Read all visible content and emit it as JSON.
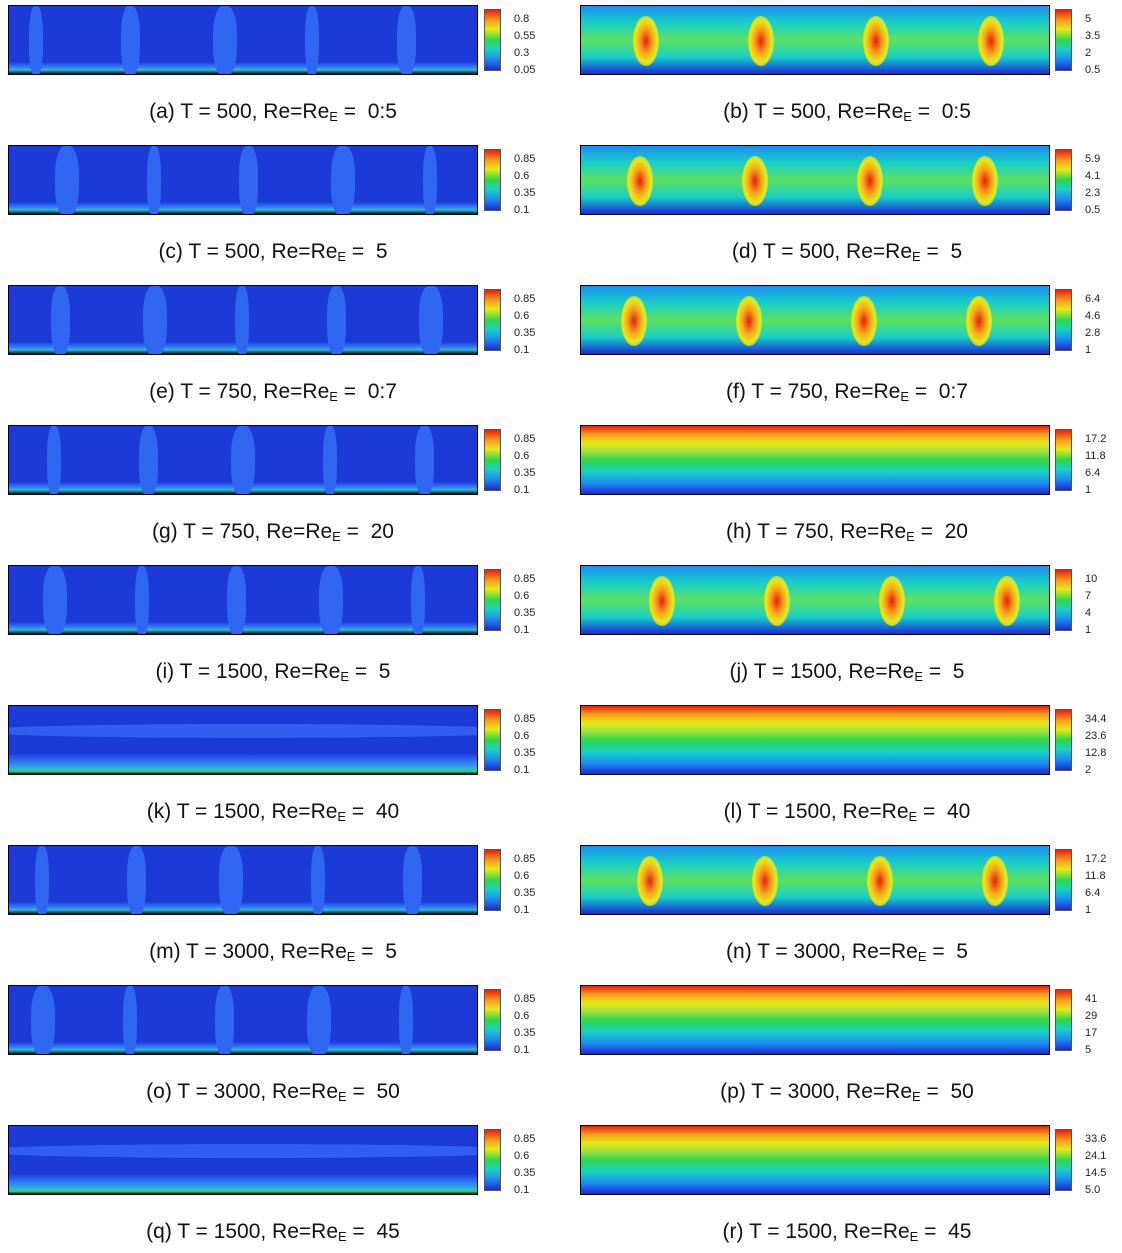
{
  "panels": [
    {
      "caption": {
        "prefix": "(a)  T = 500,  Re=Re",
        "sub": "E",
        "suffix": " =  0:5"
      },
      "colorbar": [
        "0.8",
        "0.55",
        "0.3",
        "0.05"
      ]
    },
    {
      "caption": {
        "prefix": "(b)  T = 500,  Re=Re",
        "sub": "E",
        "suffix": " =  0:5"
      },
      "colorbar": [
        "5",
        "3.5",
        "2",
        "0.5"
      ]
    },
    {
      "caption": {
        "prefix": "(c)  T = 500,  Re=Re",
        "sub": "E",
        "suffix": " =  5"
      },
      "colorbar": [
        "0.85",
        "0.6",
        "0.35",
        "0.1"
      ]
    },
    {
      "caption": {
        "prefix": "(d)  T = 500,  Re=Re",
        "sub": "E",
        "suffix": " =  5"
      },
      "colorbar": [
        "5.9",
        "4.1",
        "2.3",
        "0.5"
      ]
    },
    {
      "caption": {
        "prefix": "(e)  T = 750,  Re=Re",
        "sub": "E",
        "suffix": " =  0:7"
      },
      "colorbar": [
        "0.85",
        "0.6",
        "0.35",
        "0.1"
      ]
    },
    {
      "caption": {
        "prefix": "(f)  T = 750,  Re=Re",
        "sub": "E",
        "suffix": " =  0:7"
      },
      "colorbar": [
        "6.4",
        "4.6",
        "2.8",
        "1"
      ]
    },
    {
      "caption": {
        "prefix": "(g)  T = 750,  Re=Re",
        "sub": "E",
        "suffix": " =  20"
      },
      "colorbar": [
        "0.85",
        "0.6",
        "0.35",
        "0.1"
      ]
    },
    {
      "caption": {
        "prefix": "(h)  T = 750,  Re=Re",
        "sub": "E",
        "suffix": " =  20"
      },
      "colorbar": [
        "17.2",
        "11.8",
        "6.4",
        "1"
      ]
    },
    {
      "caption": {
        "prefix": "(i)  T = 1500,  Re=Re",
        "sub": "E",
        "suffix": " =  5"
      },
      "colorbar": [
        "0.85",
        "0.6",
        "0.35",
        "0.1"
      ]
    },
    {
      "caption": {
        "prefix": "(j)  T = 1500,  Re=Re",
        "sub": "E",
        "suffix": " =  5"
      },
      "colorbar": [
        "10",
        "7",
        "4",
        "1"
      ]
    },
    {
      "caption": {
        "prefix": "(k)  T = 1500,  Re=Re",
        "sub": "E",
        "suffix": " =  40"
      },
      "colorbar": [
        "0.85",
        "0.6",
        "0.35",
        "0.1"
      ]
    },
    {
      "caption": {
        "prefix": "(l)  T = 1500,  Re=Re",
        "sub": "E",
        "suffix": " =  40"
      },
      "colorbar": [
        "34.4",
        "23.6",
        "12.8",
        "2"
      ]
    },
    {
      "caption": {
        "prefix": "(m)  T = 3000,  Re=Re",
        "sub": "E",
        "suffix": " =  5"
      },
      "colorbar": [
        "0.85",
        "0.6",
        "0.35",
        "0.1"
      ]
    },
    {
      "caption": {
        "prefix": "(n)  T = 3000,  Re=Re",
        "sub": "E",
        "suffix": " =  5"
      },
      "colorbar": [
        "17.2",
        "11.8",
        "6.4",
        "1"
      ]
    },
    {
      "caption": {
        "prefix": "(o)  T = 3000,  Re=Re",
        "sub": "E",
        "suffix": " =  50"
      },
      "colorbar": [
        "0.85",
        "0.6",
        "0.35",
        "0.1"
      ]
    },
    {
      "caption": {
        "prefix": "(p)  T = 3000,  Re=Re",
        "sub": "E",
        "suffix": " =  50"
      },
      "colorbar": [
        "41",
        "29",
        "17",
        "5"
      ]
    },
    {
      "caption": {
        "prefix": "(q)  T = 1500,  Re=Re",
        "sub": "E",
        "suffix": " =  45"
      },
      "colorbar": [
        "0.85",
        "0.6",
        "0.35",
        "0.1"
      ]
    },
    {
      "caption": {
        "prefix": "(r)  T = 1500,  Re=Re",
        "sub": "E",
        "suffix": " =  45"
      },
      "colorbar": [
        "33.6",
        "24.1",
        "14.5",
        "5.0"
      ]
    }
  ]
}
